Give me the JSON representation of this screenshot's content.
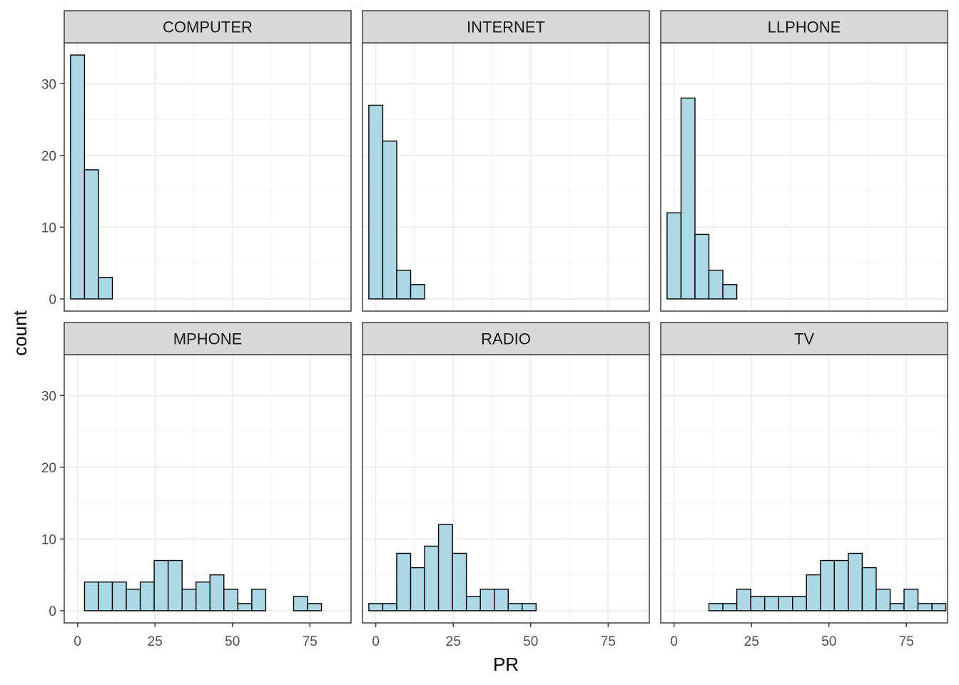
{
  "chart_data": {
    "type": "bar",
    "facet_layout": "2x3 grid",
    "xlabel": "PR",
    "ylabel": "count",
    "xlim": [
      -4.3,
      88.3
    ],
    "ylim": [
      -1.7,
      35.7
    ],
    "x_ticks": [
      0,
      25,
      50,
      75
    ],
    "y_ticks": [
      0,
      10,
      20,
      30
    ],
    "bin_width": 4.5,
    "bin_centers": [
      0,
      4.5,
      9,
      13.5,
      18,
      22.5,
      27,
      31.5,
      36,
      40.5,
      45,
      49.5,
      54,
      58.5,
      63,
      67.5,
      72,
      76.5,
      81,
      85.5
    ],
    "grid": true,
    "bar_fill": "#add8e6",
    "bar_stroke": "#000000",
    "strip_fill": "#d9d9d9",
    "panels": [
      {
        "name": "COMPUTER",
        "counts": [
          34,
          18,
          3,
          0,
          0,
          0,
          0,
          0,
          0,
          0,
          0,
          0,
          0,
          0,
          0,
          0,
          0,
          0,
          0,
          0
        ]
      },
      {
        "name": "INTERNET",
        "counts": [
          27,
          22,
          4,
          2,
          0,
          0,
          0,
          0,
          0,
          0,
          0,
          0,
          0,
          0,
          0,
          0,
          0,
          0,
          0,
          0
        ]
      },
      {
        "name": "LLPHONE",
        "counts": [
          12,
          28,
          9,
          4,
          2,
          0,
          0,
          0,
          0,
          0,
          0,
          0,
          0,
          0,
          0,
          0,
          0,
          0,
          0,
          0
        ]
      },
      {
        "name": "MPHONE",
        "counts": [
          0,
          4,
          4,
          4,
          3,
          4,
          7,
          7,
          3,
          4,
          5,
          3,
          1,
          3,
          0,
          0,
          2,
          1,
          0,
          0
        ]
      },
      {
        "name": "RADIO",
        "counts": [
          1,
          1,
          8,
          6,
          9,
          12,
          8,
          2,
          3,
          3,
          1,
          1,
          0,
          0,
          0,
          0,
          0,
          0,
          0,
          0
        ]
      },
      {
        "name": "TV",
        "counts": [
          0,
          0,
          0,
          1,
          1,
          3,
          2,
          2,
          2,
          2,
          5,
          7,
          7,
          8,
          6,
          3,
          1,
          3,
          1,
          1
        ]
      }
    ]
  }
}
